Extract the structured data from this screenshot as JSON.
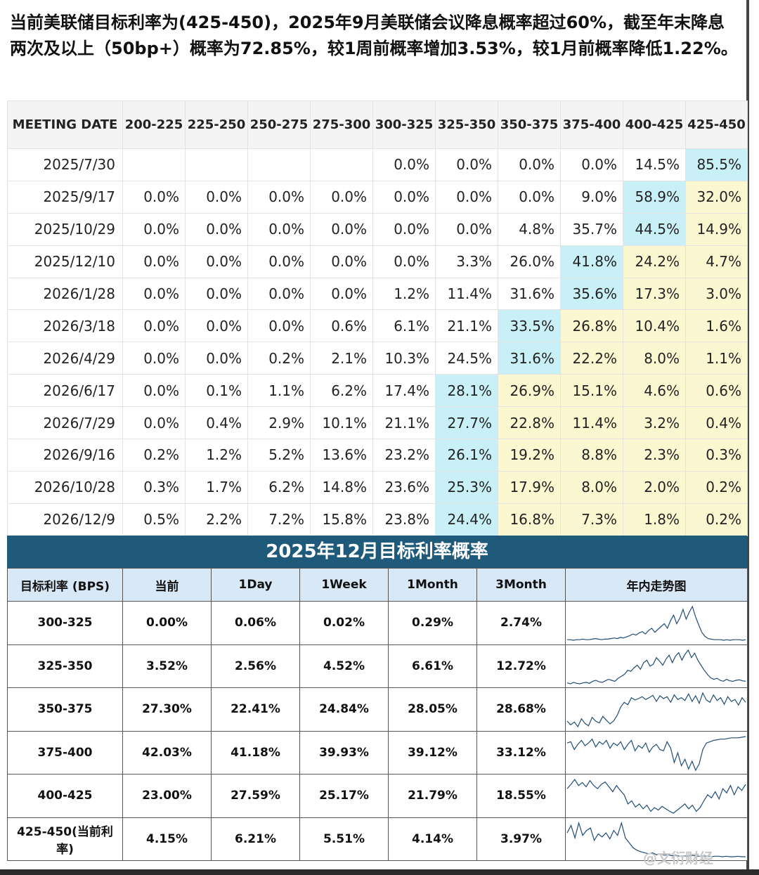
{
  "headline": "当前美联储目标利率为(425-450)，2025年9月美联储会议降息概率超过60%，截至年末降息两次及以上（50bp+）概率为72.85%，较1周前概率增加3.53%，较1月前概率降低1.22%。",
  "fed_table": {
    "columns": [
      "MEETING DATE",
      "200-225",
      "225-250",
      "250-275",
      "275-300",
      "300-325",
      "325-350",
      "350-375",
      "375-400",
      "400-425",
      "425-450"
    ],
    "rows": [
      {
        "date": "2025/7/30",
        "values": [
          "",
          "",
          "",
          "",
          "0.0%",
          "0.0%",
          "0.0%",
          "0.0%",
          "14.5%",
          "85.5%"
        ]
      },
      {
        "date": "2025/9/17",
        "values": [
          "0.0%",
          "0.0%",
          "0.0%",
          "0.0%",
          "0.0%",
          "0.0%",
          "0.0%",
          "9.0%",
          "58.9%",
          "32.0%"
        ]
      },
      {
        "date": "2025/10/29",
        "values": [
          "0.0%",
          "0.0%",
          "0.0%",
          "0.0%",
          "0.0%",
          "0.0%",
          "4.8%",
          "35.7%",
          "44.5%",
          "14.9%"
        ]
      },
      {
        "date": "2025/12/10",
        "values": [
          "0.0%",
          "0.0%",
          "0.0%",
          "0.0%",
          "0.0%",
          "3.3%",
          "26.0%",
          "41.8%",
          "24.2%",
          "4.7%"
        ]
      },
      {
        "date": "2026/1/28",
        "values": [
          "0.0%",
          "0.0%",
          "0.0%",
          "0.0%",
          "1.2%",
          "11.4%",
          "31.6%",
          "35.6%",
          "17.3%",
          "3.0%"
        ]
      },
      {
        "date": "2026/3/18",
        "values": [
          "0.0%",
          "0.0%",
          "0.0%",
          "0.6%",
          "6.1%",
          "21.1%",
          "33.5%",
          "26.8%",
          "10.4%",
          "1.6%"
        ]
      },
      {
        "date": "2026/4/29",
        "values": [
          "0.0%",
          "0.0%",
          "0.2%",
          "2.1%",
          "10.3%",
          "24.5%",
          "31.6%",
          "22.2%",
          "8.0%",
          "1.1%"
        ]
      },
      {
        "date": "2026/6/17",
        "values": [
          "0.0%",
          "0.1%",
          "1.1%",
          "6.2%",
          "17.4%",
          "28.1%",
          "26.9%",
          "15.1%",
          "4.6%",
          "0.6%"
        ]
      },
      {
        "date": "2026/7/29",
        "values": [
          "0.0%",
          "0.4%",
          "2.9%",
          "10.1%",
          "21.1%",
          "27.7%",
          "22.8%",
          "11.4%",
          "3.2%",
          "0.4%"
        ]
      },
      {
        "date": "2026/9/16",
        "values": [
          "0.2%",
          "1.2%",
          "5.2%",
          "13.6%",
          "23.2%",
          "26.1%",
          "19.2%",
          "8.8%",
          "2.3%",
          "0.3%"
        ]
      },
      {
        "date": "2026/10/28",
        "values": [
          "0.3%",
          "1.7%",
          "6.2%",
          "14.8%",
          "23.6%",
          "25.3%",
          "17.9%",
          "8.0%",
          "2.0%",
          "0.2%"
        ]
      },
      {
        "date": "2026/12/9",
        "values": [
          "0.5%",
          "2.2%",
          "7.2%",
          "15.8%",
          "23.8%",
          "24.4%",
          "16.8%",
          "7.3%",
          "1.8%",
          "0.2%"
        ]
      }
    ],
    "max_col_index": [
      9,
      8,
      8,
      7,
      7,
      6,
      6,
      5,
      5,
      5,
      5,
      5
    ],
    "highlight_colors": {
      "max": "#c9f0f7",
      "above": "#fbf7d0"
    }
  },
  "dec_section": {
    "title": "2025年12月目标利率概率",
    "columns": [
      "目标利率 (BPS)",
      "当前",
      "1Day",
      "1Week",
      "1Month",
      "3Month",
      "年内走势图"
    ],
    "rows": [
      {
        "rate": "300-325",
        "values": [
          "0.00%",
          "0.06%",
          "0.02%",
          "0.29%",
          "2.74%"
        ],
        "trend": [
          2,
          2,
          1,
          2,
          2,
          3,
          2,
          2,
          3,
          4,
          3,
          2,
          3,
          3,
          4,
          5,
          4,
          6,
          5,
          7,
          9,
          12,
          10,
          14,
          16,
          12,
          18,
          22,
          15,
          20,
          25,
          30,
          22,
          35,
          45,
          30,
          40,
          55,
          38,
          50,
          60,
          42,
          28,
          15,
          8,
          4,
          3,
          2,
          2,
          2,
          1,
          2,
          1,
          2,
          2,
          2,
          1,
          2
        ]
      },
      {
        "rate": "325-350",
        "values": [
          "3.52%",
          "2.56%",
          "4.52%",
          "6.61%",
          "12.72%"
        ],
        "trend": [
          5,
          3,
          6,
          4,
          3,
          5,
          6,
          4,
          8,
          10,
          7,
          6,
          9,
          12,
          10,
          8,
          14,
          18,
          22,
          30,
          28,
          35,
          40,
          32,
          45,
          50,
          38,
          42,
          55,
          48,
          40,
          52,
          60,
          45,
          58,
          65,
          50,
          62,
          70,
          55,
          64,
          50,
          40,
          30,
          22,
          15,
          12,
          14,
          10,
          8,
          12,
          9,
          8,
          10,
          11,
          9,
          8
        ]
      },
      {
        "rate": "350-375",
        "values": [
          "27.30%",
          "22.41%",
          "24.84%",
          "28.05%",
          "28.68%"
        ],
        "trend": [
          30,
          22,
          28,
          18,
          35,
          25,
          20,
          38,
          30,
          26,
          40,
          32,
          24,
          30,
          42,
          60,
          70,
          65,
          80,
          75,
          78,
          82,
          76,
          80,
          85,
          72,
          84,
          78,
          82,
          70,
          86,
          76,
          80,
          74,
          88,
          72,
          84,
          68,
          90,
          75,
          70,
          86,
          74,
          80,
          66,
          82,
          72,
          76,
          64,
          80,
          70
        ]
      },
      {
        "rate": "375-400",
        "values": [
          "42.03%",
          "41.18%",
          "39.93%",
          "39.12%",
          "33.12%"
        ],
        "trend": [
          70,
          72,
          60,
          68,
          74,
          66,
          70,
          76,
          64,
          72,
          68,
          74,
          62,
          70,
          66,
          72,
          60,
          68,
          74,
          58,
          66,
          62,
          70,
          56,
          64,
          68,
          60,
          58,
          72,
          62,
          40,
          55,
          35,
          45,
          30,
          42,
          28,
          38,
          60,
          70,
          72,
          74,
          75,
          76,
          76,
          77,
          78,
          78,
          78,
          79,
          80
        ]
      },
      {
        "rate": "400-425",
        "values": [
          "23.00%",
          "27.59%",
          "25.17%",
          "21.79%",
          "18.55%"
        ],
        "trend": [
          55,
          62,
          70,
          60,
          65,
          58,
          68,
          60,
          55,
          62,
          66,
          58,
          50,
          60,
          52,
          45,
          30,
          35,
          25,
          30,
          22,
          28,
          18,
          24,
          20,
          26,
          22,
          18,
          15,
          20,
          25,
          30,
          22,
          28,
          18,
          24,
          35,
          45,
          40,
          50,
          38,
          55,
          48,
          60,
          45,
          58,
          52,
          62
        ]
      },
      {
        "rate": "425-450(当前利率)",
        "values": [
          "4.15%",
          "6.21%",
          "5.51%",
          "4.14%",
          "3.97%"
        ],
        "trend": [
          50,
          65,
          40,
          70,
          45,
          55,
          60,
          35,
          48,
          42,
          50,
          38,
          55,
          45,
          70,
          40,
          30,
          20,
          15,
          12,
          10,
          8,
          10,
          6,
          8,
          5,
          6,
          4,
          5,
          3,
          4,
          3,
          5,
          4,
          3,
          4,
          3,
          2,
          3,
          3,
          2,
          3,
          2,
          2,
          3,
          2,
          2
        ]
      }
    ],
    "line_color": "#1f4e79"
  },
  "watermark": "@文衍财经"
}
